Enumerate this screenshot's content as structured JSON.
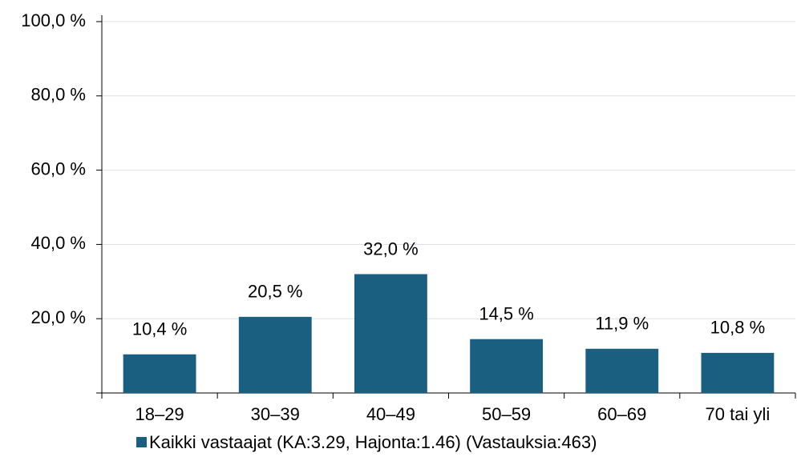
{
  "chart_data": {
    "type": "bar",
    "categories": [
      "18–29",
      "30–39",
      "40–49",
      "50–59",
      "60–69",
      "70 tai yli"
    ],
    "series": [
      {
        "name": "Kaikki vastaajat (KA:3.29, Hajonta:1.46) (Vastauksia:463)",
        "color": "#1a5f80",
        "values": [
          10.4,
          20.5,
          32.0,
          14.5,
          11.9,
          10.8
        ],
        "value_labels": [
          "10,4 %",
          "20,5 %",
          "32,0 %",
          "14,5 %",
          "11,9 %",
          "10,8 %"
        ]
      }
    ],
    "ylim": [
      0,
      100
    ],
    "yticks": [
      {
        "value": 20,
        "label": "20,0 %"
      },
      {
        "value": 40,
        "label": "40,0 %"
      },
      {
        "value": 60,
        "label": "60,0 %"
      },
      {
        "value": 80,
        "label": "80,0 %"
      },
      {
        "value": 100,
        "label": "100,0 %"
      }
    ],
    "grid": true,
    "legend": "bottom"
  }
}
